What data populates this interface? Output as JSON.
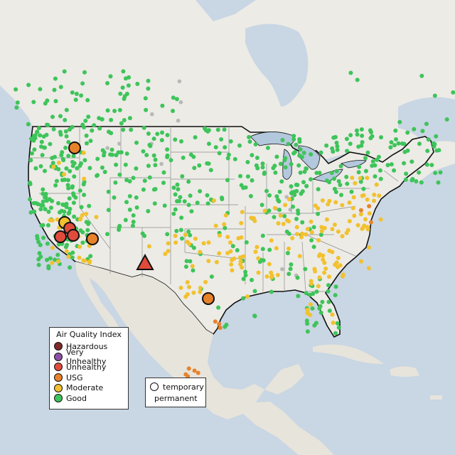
{
  "legend": {
    "title": "Air Quality Index",
    "categories": [
      {
        "label": "Hazardous",
        "color": "#7e2b2b"
      },
      {
        "label": "Very Unhealthy",
        "color": "#8e4fa5"
      },
      {
        "label": "Unhealthy",
        "color": "#e14b3b"
      },
      {
        "label": "USG",
        "color": "#e8822a"
      },
      {
        "label": "Moderate",
        "color": "#f2c12e"
      },
      {
        "label": "Good",
        "color": "#3ec45a"
      }
    ],
    "site_types": [
      {
        "label": "temporary",
        "shape": "circle"
      },
      {
        "label": "permanent",
        "shape": "triangle"
      }
    ]
  },
  "colors": {
    "ocean": "#c9d6e3",
    "land": "#ecebe6",
    "mexico_land": "#e7e4dc",
    "border": "#111111",
    "state_line": "#8d8d8d",
    "great_lakes": "#b3c8dc",
    "no_data": "#b8b8b8"
  }
}
